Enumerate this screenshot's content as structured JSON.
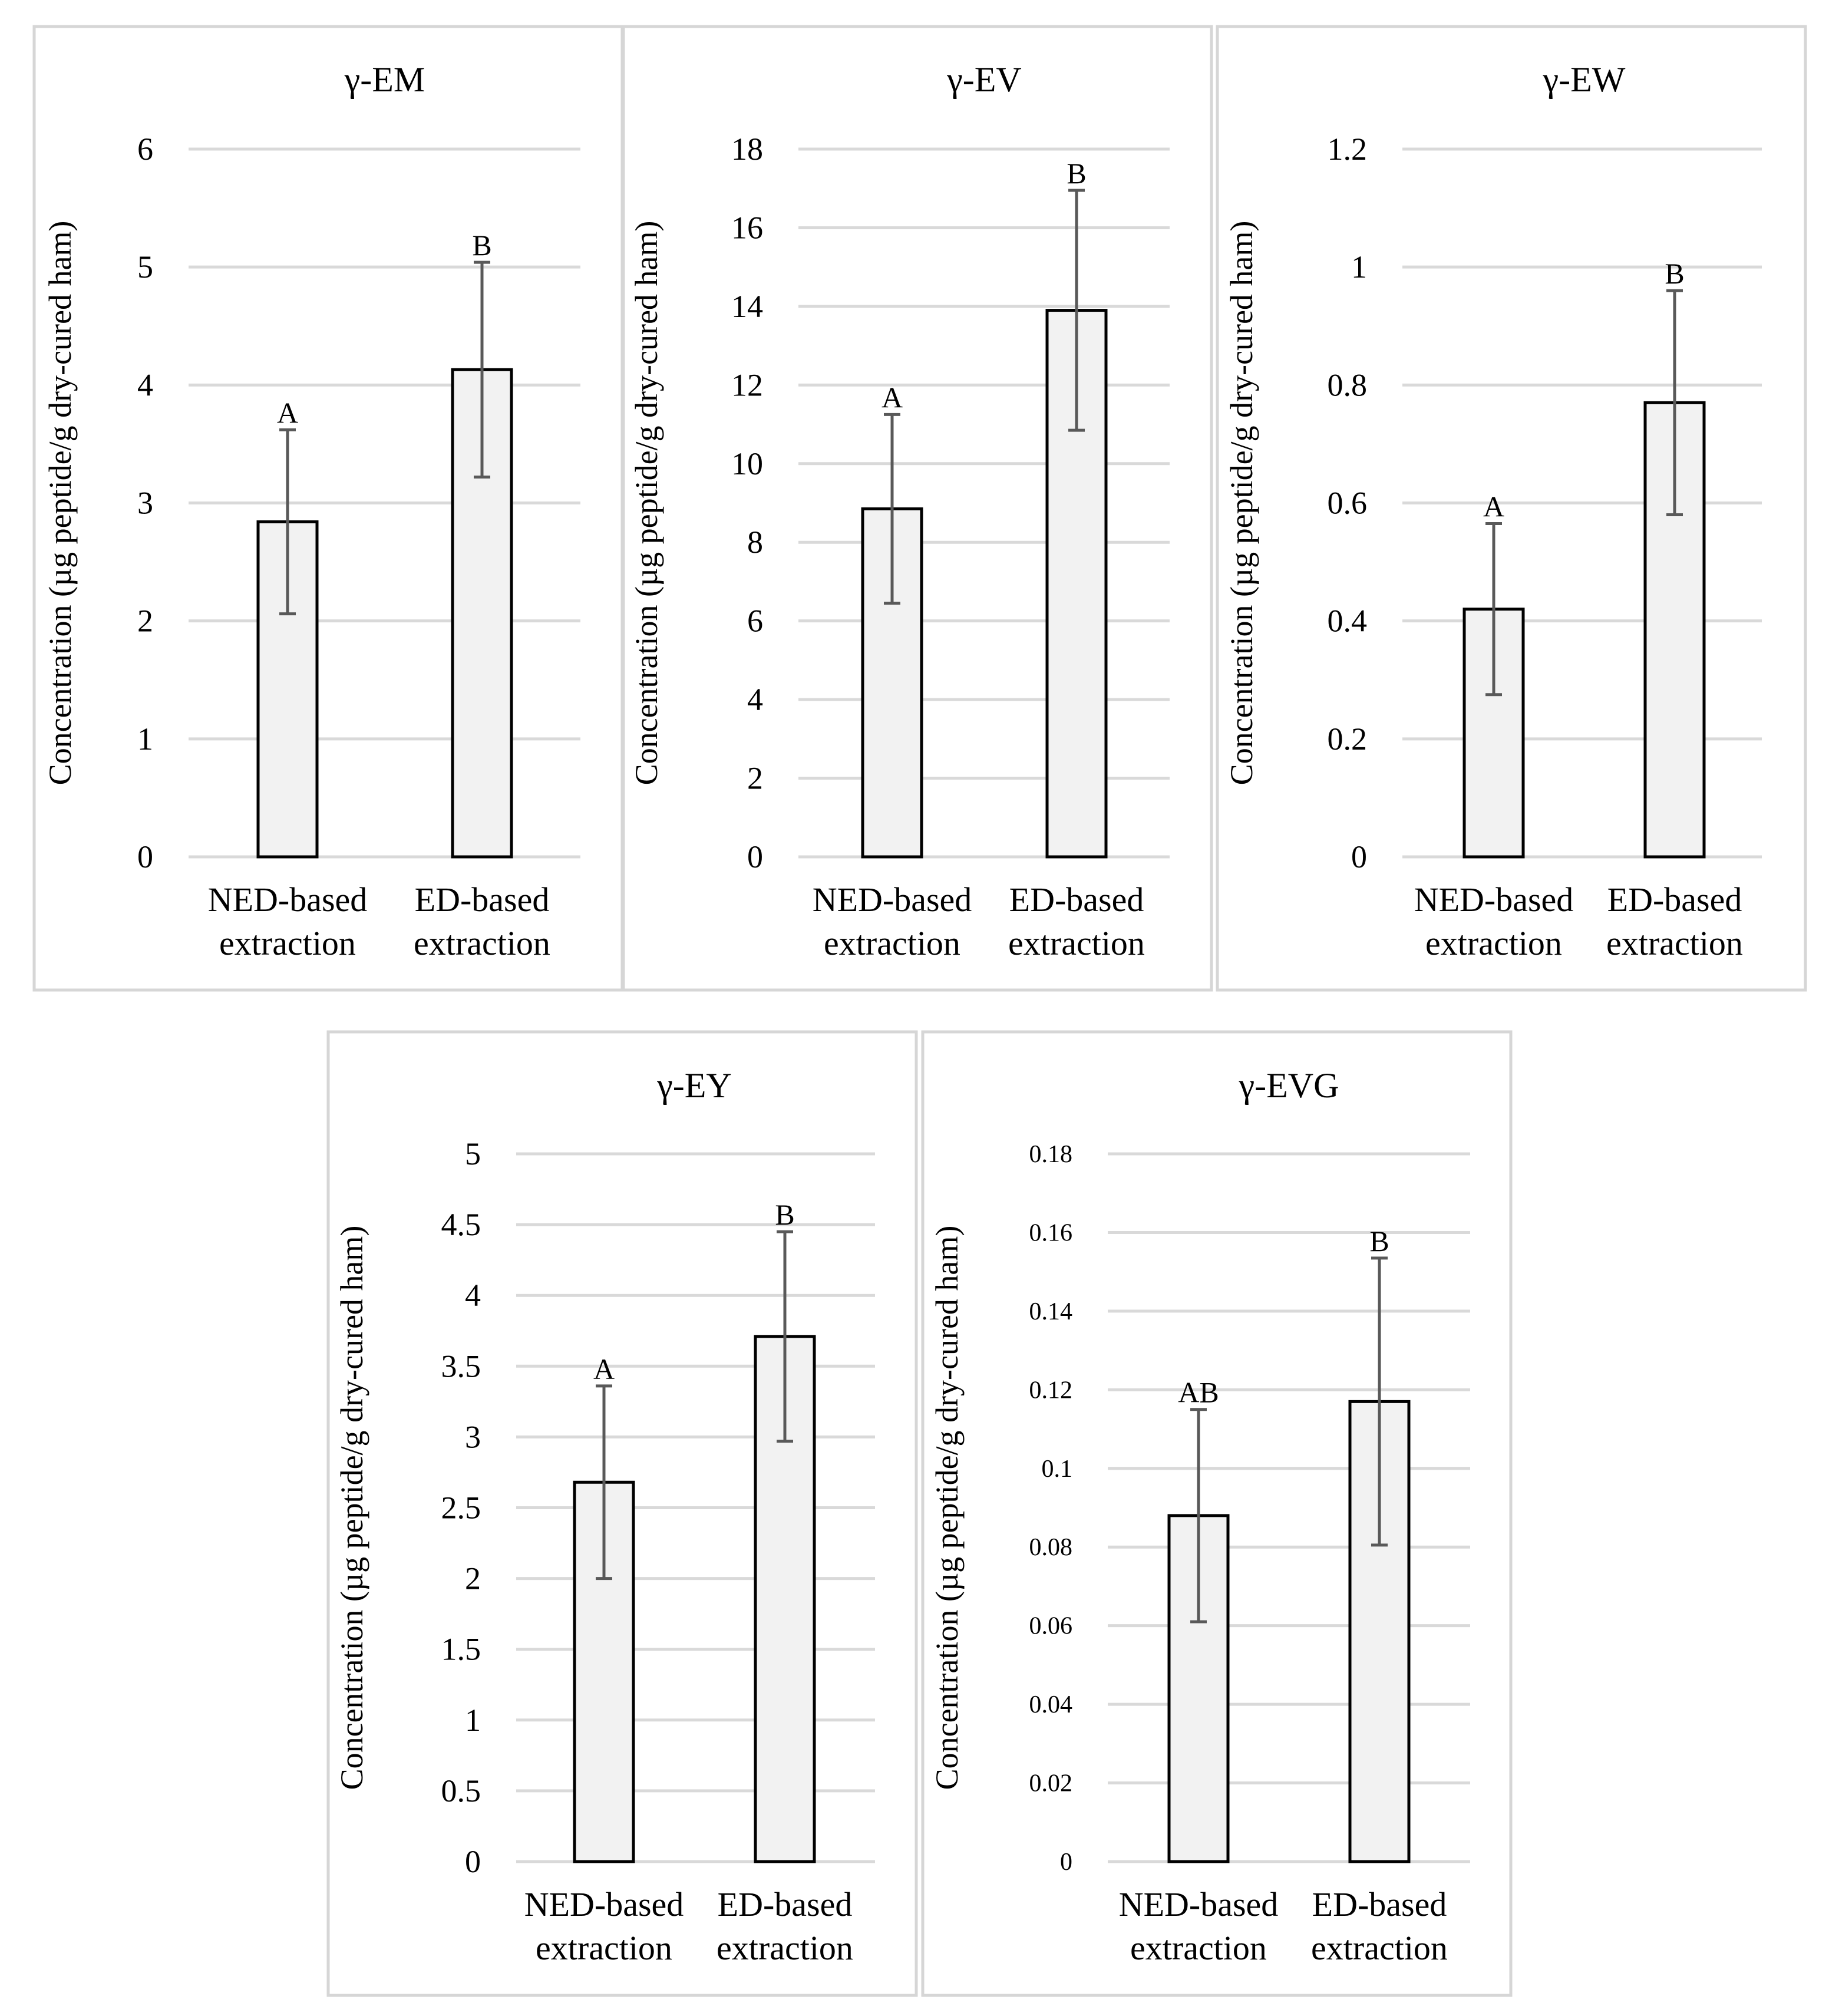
{
  "chart_data": [
    {
      "type": "bar",
      "title": "γ-EM",
      "ylabel": "Concentration (µg peptide/g dry-cured ham)",
      "categories": [
        "NED-based extraction",
        "ED-based extraction"
      ],
      "values": [
        2.84,
        4.13
      ],
      "errors": [
        0.78,
        0.91
      ],
      "significance": [
        "A",
        "B"
      ],
      "ylim": [
        0,
        6
      ],
      "yticks": [
        "0",
        "1",
        "2",
        "3",
        "4",
        "5",
        "6"
      ],
      "grid": true
    },
    {
      "type": "bar",
      "title": "γ-EV",
      "ylabel": "Concentration (µg peptide/g dry-cured ham)",
      "categories": [
        "NED-based extraction",
        "ED-based extraction"
      ],
      "values": [
        8.85,
        13.9
      ],
      "errors": [
        2.4,
        3.05
      ],
      "significance": [
        "A",
        "B"
      ],
      "ylim": [
        0,
        18
      ],
      "yticks": [
        "0",
        "2",
        "4",
        "6",
        "8",
        "10",
        "12",
        "14",
        "16",
        "18"
      ],
      "grid": true
    },
    {
      "type": "bar",
      "title": "γ-EW",
      "ylabel": "Concentration (µg peptide/g dry-cured ham)",
      "categories": [
        "NED-based extraction",
        "ED-based extraction"
      ],
      "values": [
        0.42,
        0.77
      ],
      "errors": [
        0.145,
        0.19
      ],
      "significance": [
        "A",
        "B"
      ],
      "ylim": [
        0,
        1.2
      ],
      "yticks": [
        "0",
        "0.2",
        "0.4",
        "0.6",
        "0.8",
        "1",
        "1.2"
      ],
      "grid": true
    },
    {
      "type": "bar",
      "title": "γ-EY",
      "ylabel": "Concentration (µg peptide/g dry-cured ham)",
      "categories": [
        "NED-based extraction",
        "ED-based extraction"
      ],
      "values": [
        2.68,
        3.71
      ],
      "errors": [
        0.68,
        0.74
      ],
      "significance": [
        "A",
        "B"
      ],
      "ylim": [
        0,
        5
      ],
      "yticks": [
        "0",
        "0.5",
        "1",
        "1.5",
        "2",
        "2.5",
        "3",
        "3.5",
        "4",
        "4.5",
        "5"
      ],
      "grid": true
    },
    {
      "type": "bar",
      "title": "γ-EVG",
      "ylabel": "Concentration (µg peptide/g dry-cured ham)",
      "categories": [
        "NED-based extraction",
        "ED-based extraction"
      ],
      "values": [
        0.088,
        0.117
      ],
      "errors": [
        0.027,
        0.0365
      ],
      "significance": [
        "AB",
        "B"
      ],
      "ylim": [
        0,
        0.18
      ],
      "yticks": [
        "0",
        "0.02",
        "0.04",
        "0.06",
        "0.08",
        "0.1",
        "0.12",
        "0.14",
        "0.16",
        "0.18"
      ],
      "grid": true
    }
  ]
}
